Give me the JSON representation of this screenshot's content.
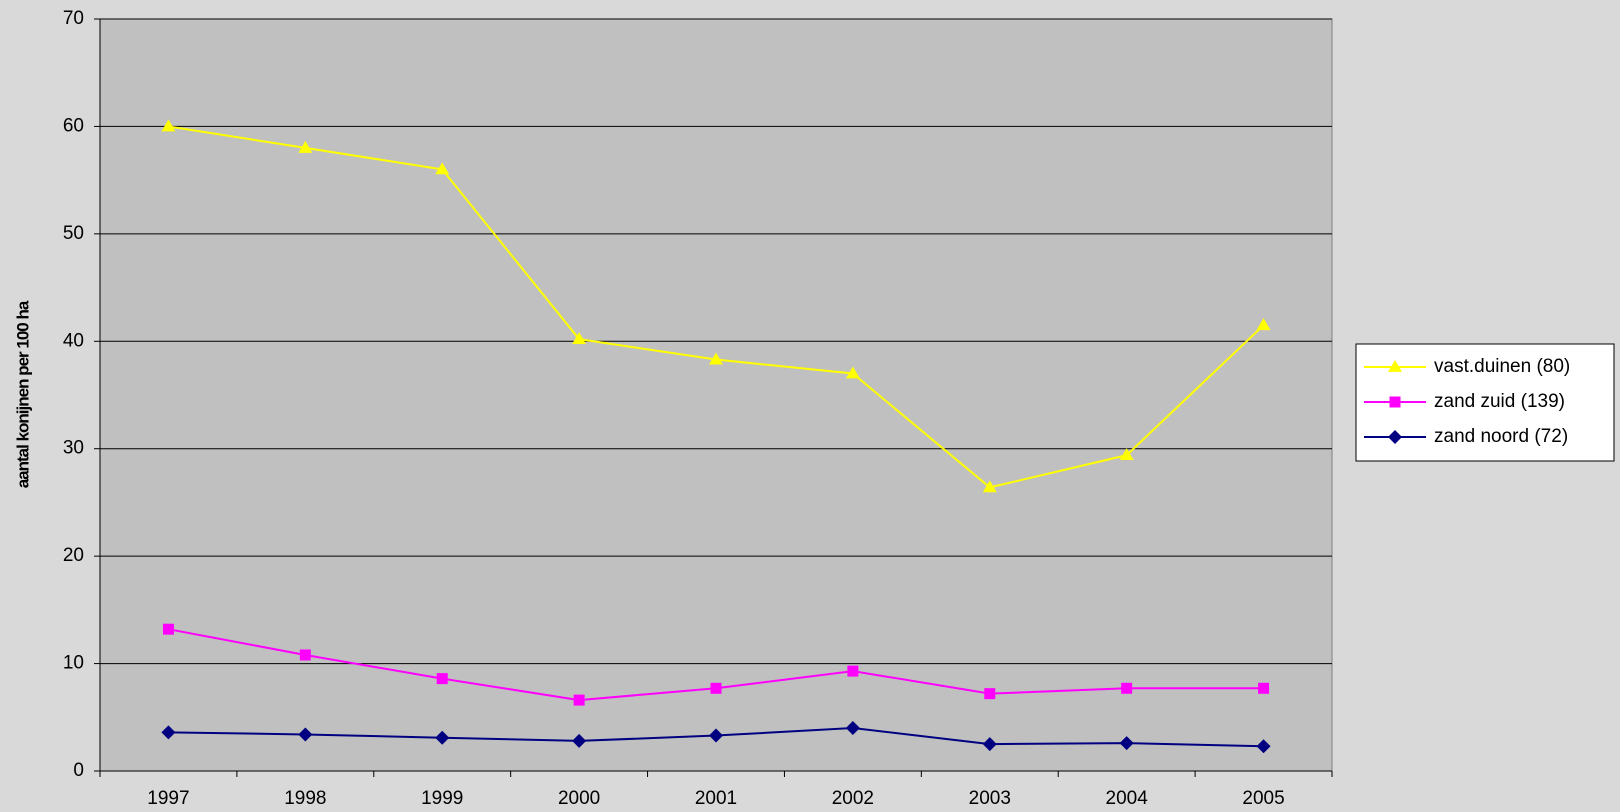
{
  "chart_data": {
    "type": "line",
    "y_label": "aantal konijnen per 100 ha",
    "categories": [
      "1997",
      "1998",
      "1999",
      "2000",
      "2001",
      "2002",
      "2003",
      "2004",
      "2005"
    ],
    "series": [
      {
        "name": "vast.duinen (80)",
        "color": "#ffff00",
        "marker": "triangle",
        "values": [
          60,
          58,
          56,
          40.2,
          38.3,
          37,
          26.4,
          29.4,
          41.5
        ]
      },
      {
        "name": "zand zuid (139)",
        "color": "#ff00ff",
        "marker": "square",
        "values": [
          13.2,
          10.8,
          8.6,
          6.6,
          7.7,
          9.3,
          7.2,
          7.7,
          7.7
        ]
      },
      {
        "name": "zand noord (72)",
        "color": "#000080",
        "marker": "diamond",
        "values": [
          3.6,
          3.4,
          3.1,
          2.8,
          3.3,
          4.0,
          2.5,
          2.6,
          2.3
        ]
      }
    ],
    "ylim": [
      0,
      70
    ],
    "yticks": [
      0,
      10,
      20,
      30,
      40,
      50,
      60,
      70
    ],
    "grid": true,
    "legend": "right"
  }
}
